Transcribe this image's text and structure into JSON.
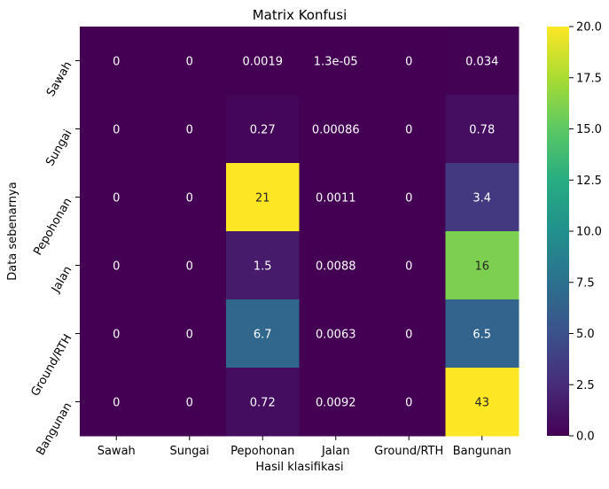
{
  "chart_data": {
    "type": "heatmap",
    "title": "Matrix Konfusi",
    "xlabel": "Hasil klasifikasi",
    "ylabel": "Data sebenarnya",
    "x_categories": [
      "Sawah",
      "Sungai",
      "Pepohonan",
      "Jalan",
      "Ground/RTH",
      "Bangunan"
    ],
    "y_categories": [
      "Sawah",
      "Sungai",
      "Pepohonan",
      "Jalan",
      "Ground/RTH",
      "Bangunan"
    ],
    "values": [
      [
        0,
        0,
        0.0019,
        1.3e-05,
        0,
        0.034
      ],
      [
        0,
        0,
        0.27,
        0.00086,
        0,
        0.78
      ],
      [
        0,
        0,
        21,
        0.0011,
        0,
        3.4
      ],
      [
        0,
        0,
        1.5,
        0.0088,
        0,
        16
      ],
      [
        0,
        0,
        6.7,
        0.0063,
        0,
        6.5
      ],
      [
        0,
        0,
        0.72,
        0.0092,
        0,
        43
      ]
    ],
    "labels": [
      [
        "0",
        "0",
        "0.0019",
        "1.3e-05",
        "0",
        "0.034"
      ],
      [
        "0",
        "0",
        "0.27",
        "0.00086",
        "0",
        "0.78"
      ],
      [
        "0",
        "0",
        "21",
        "0.0011",
        "0",
        "3.4"
      ],
      [
        "0",
        "0",
        "1.5",
        "0.0088",
        "0",
        "16"
      ],
      [
        "0",
        "0",
        "6.7",
        "0.0063",
        "0",
        "6.5"
      ],
      [
        "0",
        "0",
        "0.72",
        "0.0092",
        "0",
        "43"
      ]
    ],
    "colormap": "viridis",
    "vmin": 0,
    "vmax": 20,
    "colorbar_ticks": [
      "0.0",
      "2.5",
      "5.0",
      "7.5",
      "10.0",
      "12.5",
      "15.0",
      "17.5",
      "20.0"
    ],
    "grid": false,
    "legend": "colorbar-right"
  }
}
